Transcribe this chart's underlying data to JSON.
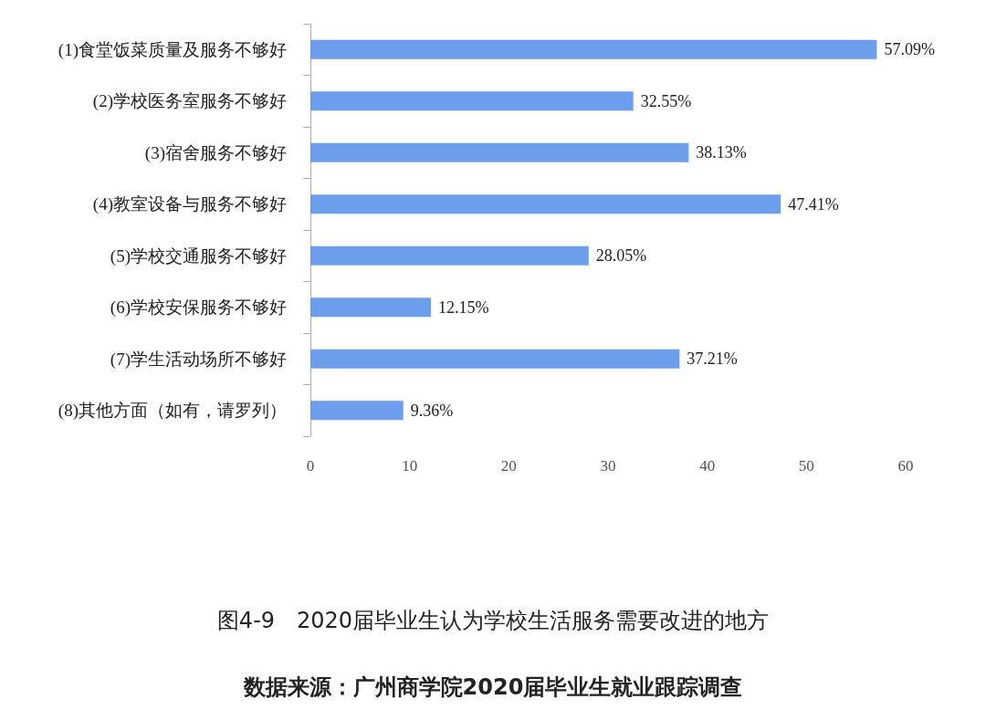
{
  "chart_data": {
    "type": "bar",
    "orientation": "horizontal",
    "title": "图4-9　2020届毕业生认为学校生活服务需要改进的地方",
    "annotations": [
      "数据来源：广州商学院2020届毕业生就业跟踪调查"
    ],
    "categories": [
      "(1)食堂饭菜质量及服务不够好",
      "(2)学校医务室服务不够好",
      "(3)宿舍服务不够好",
      "(4)教室设备与服务不够好",
      "(5)学校交通服务不够好",
      "(6)学校安保服务不够好",
      "(7)学生活动场所不够好",
      "(8)其他方面（如有，请罗列）"
    ],
    "values": [
      57.09,
      32.55,
      38.13,
      47.41,
      28.05,
      12.15,
      37.21,
      9.36
    ],
    "value_labels": [
      "57.09%",
      "32.55%",
      "38.13%",
      "47.41%",
      "28.05%",
      "12.15%",
      "37.21%",
      "9.36%"
    ],
    "color": "#6d9eeb",
    "xlim": [
      0,
      60
    ],
    "xticks": [
      0,
      10,
      20,
      30,
      40,
      50,
      60
    ],
    "grid": false
  }
}
